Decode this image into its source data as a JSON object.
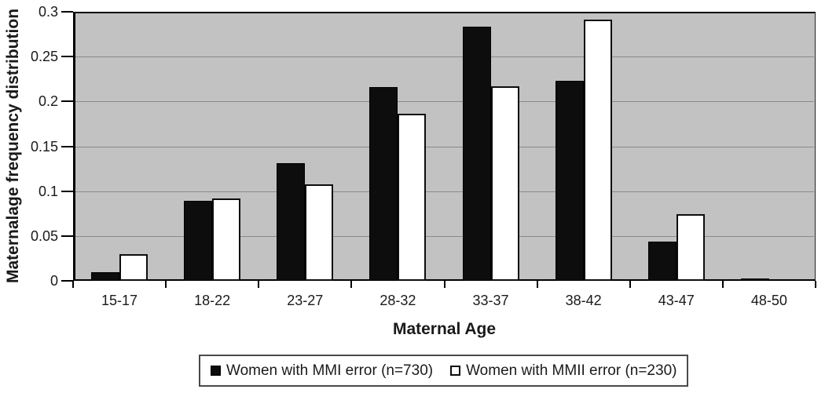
{
  "chart_data": {
    "type": "bar",
    "title": "",
    "categories": [
      "15-17",
      "18-22",
      "23-27",
      "28-32",
      "33-37",
      "38-42",
      "43-47",
      "48-50"
    ],
    "series": [
      {
        "name": "Women with MMI error (n=730)",
        "fill": "#0d0d0d",
        "border": "#000000",
        "values": [
          0.01,
          0.089,
          0.131,
          0.216,
          0.283,
          0.223,
          0.044,
          0.003
        ]
      },
      {
        "name": "Women with MMII error (n=230)",
        "fill": "#ffffff",
        "border": "#0d0d0d",
        "values": [
          0.03,
          0.092,
          0.108,
          0.186,
          0.217,
          0.291,
          0.074,
          0
        ]
      }
    ],
    "xlabel": "Maternal Age",
    "ylabel": "Maternalage frequency distribution",
    "ylim": [
      0,
      0.3
    ],
    "ytick_step": 0.05,
    "yticks": [
      "0.3",
      "0.25",
      "0.2",
      "0.15",
      "0.1",
      "0.05",
      "0"
    ],
    "grid": true,
    "legend_position": "bottom",
    "colors": {
      "plot_bg": "#c2c2c2",
      "gridline": "#8a8a8a",
      "axis": "#000000",
      "text": "#1a1a1a",
      "background": "#ffffff"
    }
  }
}
